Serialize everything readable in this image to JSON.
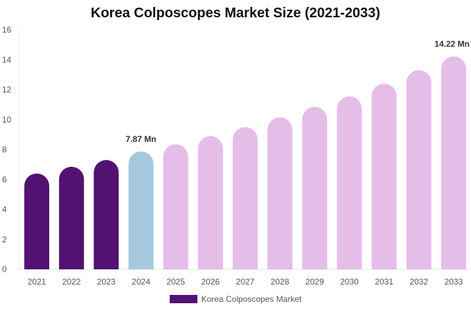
{
  "chart_data": {
    "type": "bar",
    "title": "Korea Colposcopes Market Size (2021-2033)",
    "categories": [
      "2021",
      "2022",
      "2023",
      "2024",
      "2025",
      "2026",
      "2027",
      "2028",
      "2029",
      "2030",
      "2031",
      "2032",
      "2033"
    ],
    "series": [
      {
        "name": "Korea Colposcopes Market",
        "values": [
          6.4,
          6.85,
          7.3,
          7.87,
          8.35,
          8.9,
          9.5,
          10.15,
          10.85,
          11.55,
          12.4,
          13.3,
          14.22
        ]
      }
    ],
    "data_labels": [
      {
        "category": "2024",
        "text": "7.87 Mn"
      },
      {
        "category": "2033",
        "text": "14.22 Mn"
      }
    ],
    "y_ticks": [
      "0",
      "2",
      "4",
      "6",
      "8",
      "10",
      "12",
      "14",
      "16"
    ],
    "ylim": [
      0,
      16
    ],
    "xlabel": "",
    "ylabel": "",
    "grid": false,
    "legend_position": "bottom",
    "colors": {
      "historical": "#521271",
      "current": "#a4c9de",
      "forecast": "#e5bde9",
      "legend": "#521271"
    },
    "bar_color_keys": [
      "historical",
      "historical",
      "historical",
      "current",
      "forecast",
      "forecast",
      "forecast",
      "forecast",
      "forecast",
      "forecast",
      "forecast",
      "forecast",
      "forecast"
    ]
  }
}
